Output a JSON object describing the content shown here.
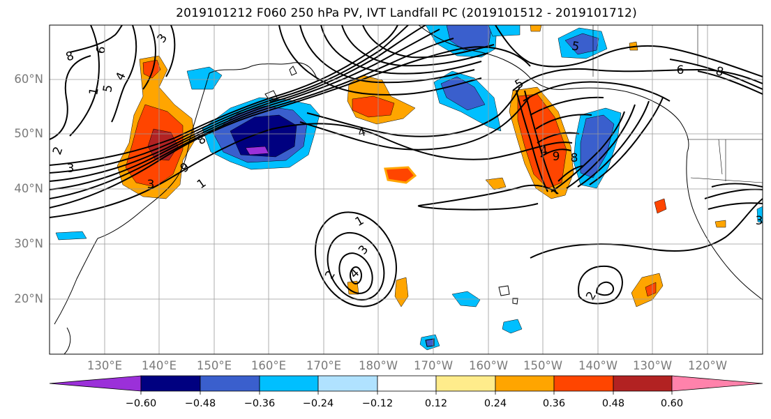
{
  "title": "2019101212 F060 250 hPa PV, IVT Landfall PC (2019101512 - 2019101712)",
  "lat_labels": [
    "60°N",
    "50°N",
    "40°N",
    "30°N",
    "20°N"
  ],
  "lon_labels": [
    "130°E",
    "140°E",
    "150°E",
    "160°E",
    "170°E",
    "180°W",
    "170°W",
    "160°W",
    "150°W",
    "140°W",
    "130°W",
    "120°W"
  ],
  "colorbar": {
    "ticks": [
      "−0.60",
      "−0.48",
      "−0.36",
      "−0.24",
      "−0.12",
      "0.12",
      "0.24",
      "0.36",
      "0.48",
      "0.60"
    ],
    "colors": [
      "#9b30d9",
      "#000080",
      "#3a5fcd",
      "#00bfff",
      "#b0e2ff",
      "#ffffff",
      "#ffec8b",
      "#ffa500",
      "#ff4500",
      "#b22222",
      "#ff82ab"
    ]
  },
  "contour_labels": [
    "8",
    "6",
    "3",
    "4",
    "5",
    "1",
    "2",
    "3",
    "8",
    "9",
    "1",
    "1",
    "2",
    "3",
    "4",
    "2",
    "8",
    "6",
    "5",
    "4",
    "9",
    "8",
    "3",
    "3",
    "5",
    "4"
  ]
}
